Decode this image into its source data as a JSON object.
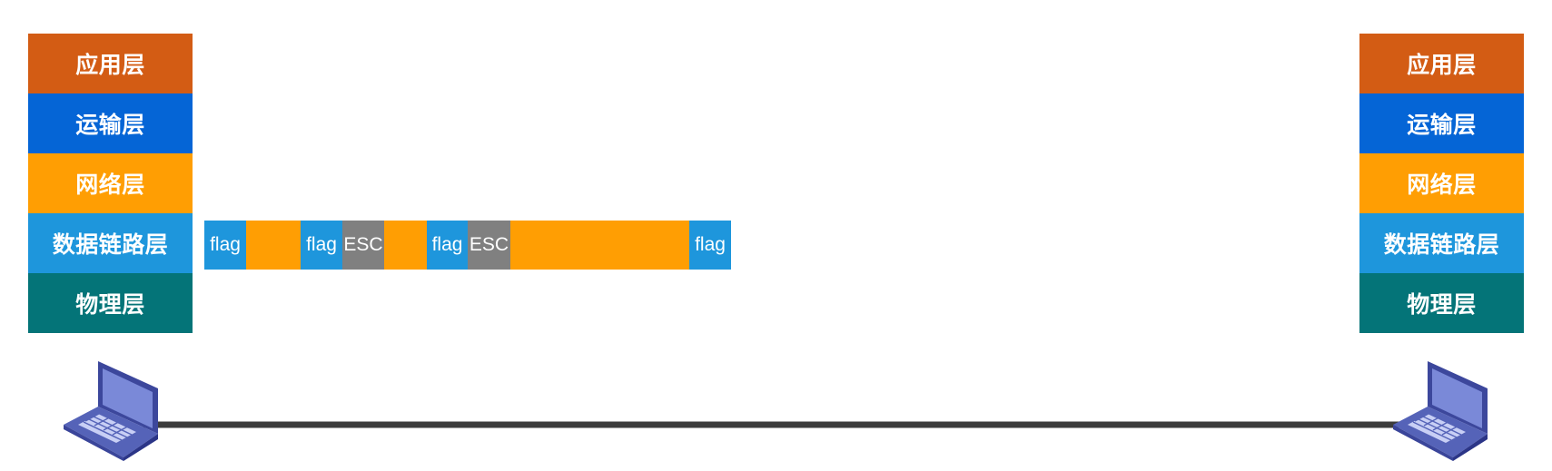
{
  "left_stack": {
    "layers": [
      {
        "label": "应用层",
        "color": "#d35c14"
      },
      {
        "label": "运输层",
        "color": "#0565d6"
      },
      {
        "label": "网络层",
        "color": "#ff9e03"
      },
      {
        "label": "数据链路层",
        "color": "#1e96dc"
      },
      {
        "label": "物理层",
        "color": "#047478"
      }
    ]
  },
  "right_stack": {
    "layers": [
      {
        "label": "应用层",
        "color": "#d35c14"
      },
      {
        "label": "运输层",
        "color": "#0565d6"
      },
      {
        "label": "网络层",
        "color": "#ff9e03"
      },
      {
        "label": "数据链路层",
        "color": "#1e96dc"
      },
      {
        "label": "物理层",
        "color": "#047478"
      }
    ]
  },
  "frame": {
    "segments": [
      {
        "label": "flag",
        "kind": "flag",
        "color": "#1e96dc"
      },
      {
        "label": "",
        "kind": "data",
        "color": "#ff9e03"
      },
      {
        "label": "flag",
        "kind": "flag",
        "color": "#1e96dc"
      },
      {
        "label": "ESC",
        "kind": "escape",
        "color": "#808080"
      },
      {
        "label": "",
        "kind": "data",
        "color": "#ff9e03"
      },
      {
        "label": "flag",
        "kind": "flag",
        "color": "#1e96dc"
      },
      {
        "label": "ESC",
        "kind": "escape",
        "color": "#808080"
      },
      {
        "label": "",
        "kind": "data",
        "color": "#ff9e03"
      },
      {
        "label": "flag",
        "kind": "flag",
        "color": "#1e96dc"
      }
    ]
  },
  "link": {
    "color": "#3c3c3c"
  },
  "laptop": {
    "icon": "laptop-icon",
    "color": "#4b57a8"
  }
}
